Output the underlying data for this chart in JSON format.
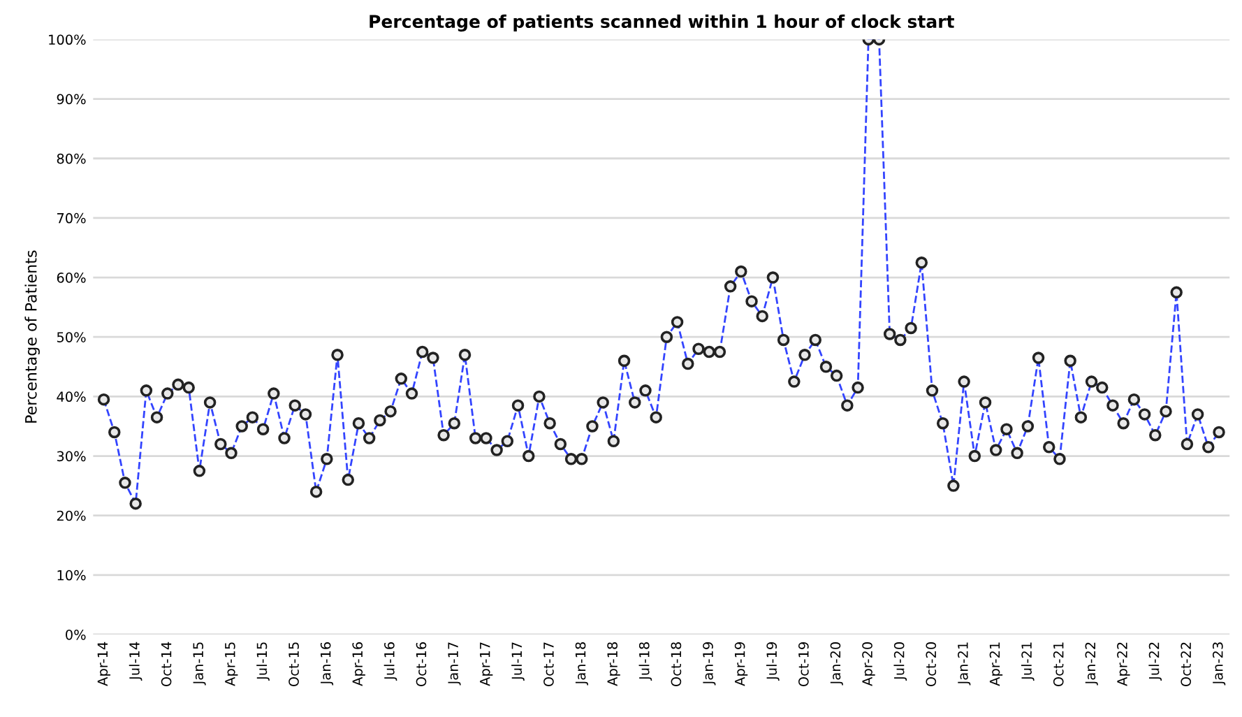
{
  "chart_data": {
    "type": "line",
    "title": "Percentage of patients scanned within 1 hour of clock start",
    "ylabel": "Percentage of Patients",
    "categories": [
      "Apr-14",
      null,
      null,
      "Jul-14",
      null,
      null,
      "Oct-14",
      null,
      null,
      "Jan-15",
      null,
      null,
      "Apr-15",
      null,
      null,
      "Jul-15",
      null,
      null,
      "Oct-15",
      null,
      null,
      "Jan-16",
      null,
      null,
      "Apr-16",
      null,
      null,
      "Jul-16",
      null,
      null,
      "Oct-16",
      null,
      null,
      "Jan-17",
      null,
      null,
      "Apr-17",
      null,
      null,
      "Jul-17",
      null,
      null,
      "Oct-17",
      null,
      null,
      "Jan-18",
      null,
      null,
      "Apr-18",
      null,
      null,
      "Jul-18",
      null,
      null,
      "Oct-18",
      null,
      null,
      "Jan-19",
      null,
      null,
      "Apr-19",
      null,
      null,
      "Jul-19",
      null,
      null,
      "Oct-19",
      null,
      null,
      "Jan-20",
      null,
      null,
      "Apr-20",
      null,
      null,
      "Jul-20",
      null,
      null,
      "Oct-20",
      null,
      null,
      "Jan-21",
      null,
      null,
      "Apr-21",
      null,
      null,
      "Jul-21",
      null,
      null,
      "Oct-21",
      null,
      null,
      "Jan-22",
      null,
      null,
      "Apr-22",
      null,
      null,
      "Jul-22",
      null,
      null,
      "Oct-22",
      null,
      null,
      "Jan-23"
    ],
    "series": [
      {
        "color": "#3344ff",
        "values": [
          39.5,
          34,
          25.5,
          22,
          41,
          36.5,
          40.5,
          42,
          41.5,
          27.5,
          39,
          32,
          30.5,
          35,
          36.5,
          34.5,
          40.5,
          33,
          38.5,
          37,
          24,
          29.5,
          47,
          26,
          35.5,
          33,
          36,
          37.5,
          43,
          40.5,
          47.5,
          46.5,
          33.5,
          35.5,
          47,
          33,
          33,
          31,
          32.5,
          38.5,
          30,
          40,
          35.5,
          32,
          29.5,
          29.5,
          35,
          39,
          32.5,
          46,
          39,
          41,
          36.5,
          50,
          52.5,
          45.5,
          48,
          47.5,
          47.5,
          58.5,
          61,
          56,
          53.5,
          60,
          49.5,
          42.5,
          47,
          49.5,
          45,
          43.5,
          38.5,
          41.5,
          100,
          100,
          50.5,
          49.5,
          51.5,
          62.5,
          41,
          35.5,
          25,
          42.5,
          30,
          39,
          31,
          34.5,
          30.5,
          35,
          46.5,
          31.5,
          29.5,
          46,
          36.5,
          42.5,
          41.5,
          38.5,
          35.5,
          39.5,
          37,
          33.5,
          37.5,
          57.5,
          32,
          37,
          31.5,
          34
        ]
      }
    ],
    "ylim": [
      0,
      100
    ],
    "yticks": [
      {
        "value": 0,
        "label": "0%"
      },
      {
        "value": 10,
        "label": "10%"
      },
      {
        "value": 20,
        "label": "20%"
      },
      {
        "value": 30,
        "label": "30%"
      },
      {
        "value": 40,
        "label": "40%"
      },
      {
        "value": 50,
        "label": "50%"
      },
      {
        "value": 60,
        "label": "60%"
      },
      {
        "value": 70,
        "label": "70%"
      },
      {
        "value": 80,
        "label": "80%"
      },
      {
        "value": 90,
        "label": "90%"
      },
      {
        "value": 100,
        "label": "100%"
      }
    ],
    "grid": "y",
    "marker": "circle",
    "line_style": "dashed"
  }
}
